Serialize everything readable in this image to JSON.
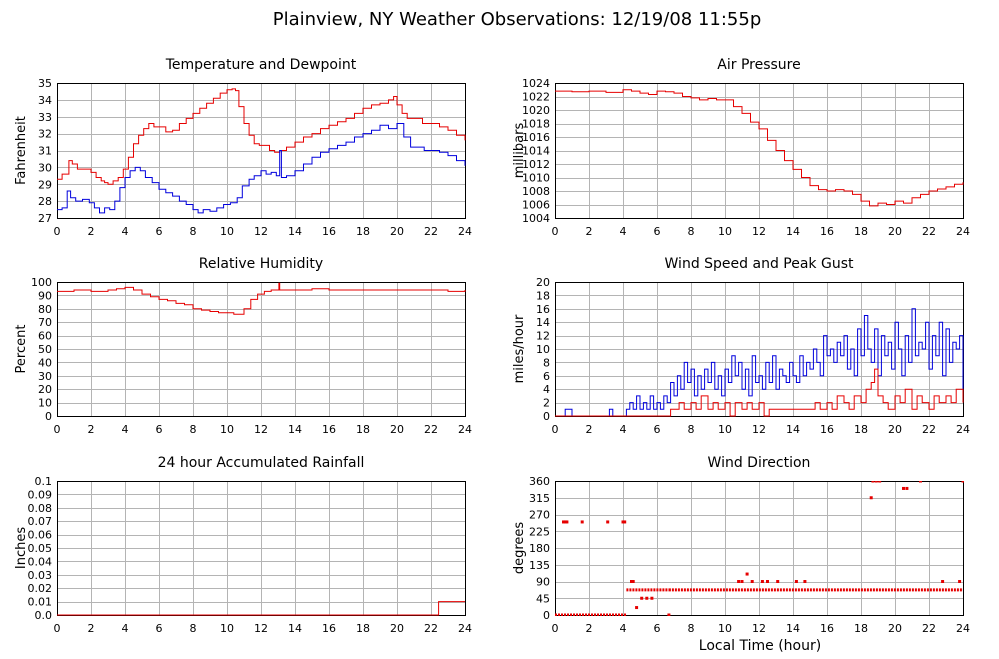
{
  "figure": {
    "title": "Plainview, NY Weather Observations: 12/19/08 11:55p",
    "xlabel": "Local Time (hour)"
  },
  "colors": {
    "red": "#e60000",
    "blue": "#0000dd",
    "grid": "#b4b4b4"
  },
  "chart_data": [
    {
      "type": "line",
      "title": "Temperature and Dewpoint",
      "ylabel": "Fahrenheit",
      "xlim": [
        0,
        24
      ],
      "ylim": [
        27,
        35
      ],
      "xticks": [
        0,
        2,
        4,
        6,
        8,
        10,
        12,
        14,
        16,
        18,
        20,
        22,
        24
      ],
      "yticks": [
        27,
        28,
        29,
        30,
        31,
        32,
        33,
        34,
        35
      ],
      "grid": true,
      "series": [
        {
          "color": "#e60000",
          "x": [
            0,
            0.3,
            0.7,
            0.9,
            1.2,
            1.6,
            2,
            2.3,
            2.6,
            2.8,
            3,
            3.3,
            3.6,
            3.9,
            4.2,
            4.5,
            4.8,
            5.1,
            5.4,
            5.7,
            6,
            6.4,
            6.8,
            7.2,
            7.6,
            8,
            8.4,
            8.8,
            9.2,
            9.6,
            10,
            10.3,
            10.5,
            10.7,
            11,
            11.3,
            11.6,
            11.9,
            12.2,
            12.5,
            12.8,
            13.1,
            13.5,
            14,
            14.5,
            15,
            15.5,
            16,
            16.5,
            17,
            17.5,
            18,
            18.5,
            19,
            19.5,
            19.8,
            20,
            20.3,
            20.6,
            21,
            21.5,
            22,
            22.5,
            23,
            23.5,
            24
          ],
          "y": [
            29.3,
            29.6,
            30.4,
            30.2,
            29.9,
            29.9,
            29.7,
            29.4,
            29.2,
            29.1,
            29.0,
            29.2,
            29.4,
            29.9,
            30.6,
            31.4,
            31.9,
            32.3,
            32.6,
            32.4,
            32.4,
            32.1,
            32.2,
            32.6,
            32.9,
            33.2,
            33.5,
            33.8,
            34.1,
            34.4,
            34.6,
            34.65,
            34.55,
            33.6,
            32.6,
            31.9,
            31.4,
            31.3,
            31.3,
            31.0,
            30.9,
            31.0,
            31.2,
            31.5,
            31.8,
            32.0,
            32.3,
            32.5,
            32.7,
            32.9,
            33.2,
            33.5,
            33.7,
            33.8,
            34.0,
            34.2,
            33.7,
            33.2,
            32.9,
            32.9,
            32.6,
            32.6,
            32.4,
            32.2,
            31.9,
            31.6
          ]
        },
        {
          "color": "#0000dd",
          "x": [
            0,
            0.3,
            0.6,
            0.8,
            1.1,
            1.5,
            1.9,
            2.2,
            2.5,
            2.8,
            3.1,
            3.4,
            3.7,
            4,
            4.3,
            4.6,
            4.9,
            5.2,
            5.6,
            6,
            6.4,
            6.8,
            7.2,
            7.6,
            8,
            8.3,
            8.6,
            9,
            9.4,
            9.8,
            10.2,
            10.6,
            10.9,
            11.3,
            11.6,
            12,
            12.3,
            12.6,
            12.9,
            13.1,
            13.2,
            13.5,
            14,
            14.5,
            15,
            15.5,
            16,
            16.5,
            17,
            17.5,
            18,
            18.5,
            19,
            19.5,
            20,
            20.4,
            20.8,
            21.2,
            21.6,
            22,
            22.5,
            23,
            23.5,
            24
          ],
          "y": [
            27.5,
            27.6,
            28.6,
            28.2,
            28.0,
            28.1,
            27.9,
            27.6,
            27.3,
            27.6,
            27.5,
            28.0,
            28.8,
            29.4,
            29.8,
            30.0,
            29.8,
            29.4,
            29.1,
            28.7,
            28.5,
            28.3,
            28.0,
            27.8,
            27.5,
            27.3,
            27.5,
            27.4,
            27.6,
            27.8,
            27.9,
            28.2,
            28.9,
            29.3,
            29.5,
            29.8,
            29.6,
            29.7,
            29.5,
            31.0,
            29.4,
            29.5,
            29.8,
            30.2,
            30.6,
            30.9,
            31.1,
            31.3,
            31.5,
            31.8,
            32.0,
            32.2,
            32.5,
            32.3,
            32.6,
            31.8,
            31.2,
            31.2,
            31.0,
            31.0,
            30.9,
            30.7,
            30.4,
            30.1
          ]
        }
      ]
    },
    {
      "type": "line",
      "title": "Air Pressure",
      "ylabel": "millibars",
      "xlim": [
        0,
        24
      ],
      "ylim": [
        1004,
        1024
      ],
      "xticks": [
        0,
        2,
        4,
        6,
        8,
        10,
        12,
        14,
        16,
        18,
        20,
        22,
        24
      ],
      "yticks": [
        1004,
        1006,
        1008,
        1010,
        1012,
        1014,
        1016,
        1018,
        1020,
        1022,
        1024
      ],
      "grid": true,
      "series": [
        {
          "color": "#e60000",
          "x": [
            0,
            1,
            2,
            3,
            4,
            4.5,
            5,
            5.5,
            6,
            6.5,
            7,
            7.5,
            8,
            8.5,
            9,
            9.5,
            10,
            10.5,
            11,
            11.5,
            12,
            12.5,
            13,
            13.5,
            14,
            14.5,
            15,
            15.5,
            16,
            16.5,
            17,
            17.5,
            18,
            18.5,
            19,
            19.5,
            20,
            20.5,
            21,
            21.5,
            22,
            22.5,
            23,
            23.5,
            24
          ],
          "y": [
            1022.8,
            1022.7,
            1022.8,
            1022.6,
            1023.0,
            1022.8,
            1022.5,
            1022.3,
            1022.8,
            1022.7,
            1022.5,
            1022.0,
            1021.8,
            1021.5,
            1021.7,
            1021.5,
            1021.5,
            1020.5,
            1019.5,
            1018.2,
            1017.2,
            1015.5,
            1014.0,
            1012.5,
            1011.2,
            1010.0,
            1008.8,
            1008.2,
            1008.0,
            1008.2,
            1008.0,
            1007.5,
            1006.5,
            1005.8,
            1006.2,
            1006.0,
            1006.5,
            1006.2,
            1007.0,
            1007.5,
            1008.0,
            1008.3,
            1008.6,
            1009.0,
            1009.3
          ]
        }
      ]
    },
    {
      "type": "line",
      "title": "Relative Humidity",
      "ylabel": "Percent",
      "xlim": [
        0,
        24
      ],
      "ylim": [
        0,
        100
      ],
      "xticks": [
        0,
        2,
        4,
        6,
        8,
        10,
        12,
        14,
        16,
        18,
        20,
        22,
        24
      ],
      "yticks": [
        0,
        10,
        20,
        30,
        40,
        50,
        60,
        70,
        80,
        90,
        100
      ],
      "grid": true,
      "series": [
        {
          "color": "#e60000",
          "x": [
            0,
            0.5,
            1,
            2,
            3,
            3.5,
            4,
            4.5,
            5,
            5.5,
            6,
            6.5,
            7,
            7.5,
            8,
            8.5,
            9,
            9.5,
            10,
            10.4,
            10.7,
            11,
            11.4,
            11.8,
            12.2,
            12.6,
            13,
            13.05,
            13.1,
            13.2,
            13.5,
            14,
            15,
            16,
            17,
            18,
            19,
            20,
            21,
            22,
            23,
            23.5,
            24
          ],
          "y": [
            93,
            93,
            94,
            93,
            94,
            95,
            96,
            94,
            91,
            89,
            87,
            86,
            84,
            83,
            80,
            79,
            78,
            77,
            77,
            76,
            76,
            80,
            87,
            91,
            93,
            94,
            94,
            99,
            94,
            94,
            94,
            94,
            95,
            94,
            94,
            94,
            94,
            94,
            94,
            94,
            93,
            93,
            94
          ]
        }
      ]
    },
    {
      "type": "line",
      "title": "Wind Speed and Peak Gust",
      "ylabel": "miles/hour",
      "xlim": [
        0,
        24
      ],
      "ylim": [
        0,
        20
      ],
      "xticks": [
        0,
        2,
        4,
        6,
        8,
        10,
        12,
        14,
        16,
        18,
        20,
        22,
        24
      ],
      "yticks": [
        0,
        2,
        4,
        6,
        8,
        10,
        12,
        14,
        16,
        18,
        20
      ],
      "grid": true,
      "series": [
        {
          "color": "#0000dd",
          "x": [
            0,
            0.4,
            0.6,
            0.8,
            1,
            2,
            3,
            3.2,
            3.4,
            4,
            4.2,
            4.4,
            4.6,
            4.8,
            5,
            5.2,
            5.4,
            5.6,
            5.8,
            6,
            6.2,
            6.4,
            6.6,
            6.8,
            7,
            7.2,
            7.4,
            7.6,
            7.8,
            8,
            8.2,
            8.4,
            8.6,
            8.8,
            9,
            9.2,
            9.4,
            9.6,
            9.8,
            10,
            10.2,
            10.4,
            10.6,
            10.8,
            11,
            11.2,
            11.4,
            11.6,
            11.8,
            12,
            12.2,
            12.4,
            12.6,
            12.8,
            13,
            13.2,
            13.4,
            13.6,
            13.8,
            14,
            14.2,
            14.4,
            14.6,
            14.8,
            15,
            15.2,
            15.4,
            15.6,
            15.8,
            16,
            16.2,
            16.4,
            16.6,
            16.8,
            17,
            17.2,
            17.4,
            17.6,
            17.8,
            18,
            18.2,
            18.4,
            18.6,
            18.8,
            19,
            19.2,
            19.4,
            19.6,
            19.8,
            20,
            20.2,
            20.4,
            20.6,
            20.8,
            21,
            21.2,
            21.4,
            21.6,
            21.8,
            22,
            22.2,
            22.4,
            22.6,
            22.8,
            23,
            23.2,
            23.4,
            23.6,
            23.8,
            24
          ],
          "y": [
            0,
            0,
            1,
            1,
            0,
            0,
            0,
            1,
            0,
            0,
            1,
            2,
            1,
            3,
            1,
            2,
            1,
            3,
            1,
            2,
            1,
            3,
            2,
            5,
            3,
            6,
            4,
            8,
            5,
            7,
            3,
            6,
            4,
            7,
            5,
            8,
            4,
            6,
            3,
            7,
            5,
            9,
            6,
            8,
            4,
            7,
            3,
            9,
            5,
            6,
            4,
            8,
            5,
            9,
            4,
            7,
            6,
            5,
            8,
            6,
            5,
            9,
            6,
            8,
            7,
            10,
            8,
            6,
            12,
            9,
            10,
            8,
            11,
            9,
            12,
            7,
            10,
            6,
            13,
            9,
            15,
            10,
            8,
            13,
            6,
            12,
            9,
            11,
            7,
            14,
            10,
            6,
            12,
            8,
            16,
            9,
            11,
            10,
            14,
            7,
            12,
            9,
            14,
            6,
            13,
            8,
            11,
            10,
            12,
            4
          ]
        },
        {
          "color": "#e60000",
          "x": [
            0,
            3,
            6,
            6.5,
            6.8,
            7,
            7.3,
            7.6,
            8,
            8.3,
            8.6,
            9,
            9.3,
            9.6,
            10,
            10.3,
            10.6,
            11,
            11.3,
            11.6,
            12,
            12.3,
            12.6,
            13,
            13.5,
            14,
            14.5,
            15,
            15.3,
            15.6,
            16,
            16.3,
            16.6,
            17,
            17.3,
            17.6,
            18,
            18.3,
            18.6,
            18.8,
            19,
            19.3,
            19.6,
            20,
            20.3,
            20.6,
            21,
            21.3,
            21.6,
            22,
            22.3,
            22.6,
            23,
            23.3,
            23.6,
            24
          ],
          "y": [
            0,
            0,
            0,
            0,
            1,
            1,
            2,
            1,
            2,
            1,
            3,
            1,
            2,
            1,
            2,
            0,
            2,
            1,
            2,
            1,
            2,
            0,
            1,
            1,
            1,
            1,
            1,
            1,
            2,
            1,
            2,
            1,
            3,
            2,
            1,
            3,
            2,
            4,
            5,
            7,
            3,
            2,
            1,
            3,
            2,
            4,
            1,
            3,
            2,
            1,
            3,
            2,
            3,
            2,
            4,
            2
          ]
        }
      ]
    },
    {
      "type": "line",
      "title": "24 hour Accumulated Rainfall",
      "ylabel": "Inches",
      "xlim": [
        0,
        24
      ],
      "ylim": [
        0,
        0.1
      ],
      "xticks": [
        0,
        2,
        4,
        6,
        8,
        10,
        12,
        14,
        16,
        18,
        20,
        22,
        24
      ],
      "yticks": [
        0.0,
        0.01,
        0.02,
        0.03,
        0.04,
        0.05,
        0.06,
        0.07,
        0.08,
        0.09,
        0.1
      ],
      "yticklabels": [
        "0.0",
        "0.01",
        "0.02",
        "0.03",
        "0.04",
        "0.05",
        "0.06",
        "0.07",
        "0.08",
        "0.09",
        "0.1"
      ],
      "grid": true,
      "series": [
        {
          "color": "#e60000",
          "x": [
            0,
            22.3,
            22.45,
            24
          ],
          "y": [
            0,
            0,
            0.01,
            0.01
          ]
        }
      ]
    },
    {
      "type": "scatter",
      "title": "Wind Direction",
      "ylabel": "degrees",
      "xlim": [
        0,
        24
      ],
      "ylim": [
        0,
        360
      ],
      "xticks": [
        0,
        2,
        4,
        6,
        8,
        10,
        12,
        14,
        16,
        18,
        20,
        22,
        24
      ],
      "yticks": [
        0,
        45,
        90,
        135,
        180,
        225,
        270,
        315,
        360
      ],
      "grid": true,
      "series": [
        {
          "color": "#e60000",
          "x": [
            0.5,
            0.6,
            0.7,
            1.6,
            3.1,
            4.0,
            4.1,
            4.5,
            4.6,
            4.8,
            5.1,
            5.4,
            5.7,
            6.7,
            10.8,
            11.0,
            11.3,
            11.6,
            12.2,
            12.5,
            13.1,
            14.2,
            14.7,
            18.6,
            18.7,
            18.9,
            19.1,
            20.5,
            20.7,
            21.5,
            22.8,
            23.8,
            24.0
          ],
          "y": [
            250,
            250,
            250,
            250,
            250,
            250,
            250,
            90,
            90,
            20,
            45,
            45,
            45,
            0,
            90,
            90,
            110,
            90,
            90,
            90,
            90,
            90,
            90,
            315,
            360,
            360,
            360,
            340,
            340,
            360,
            90,
            90,
            360
          ]
        }
      ],
      "bands": [
        {
          "x_start": 0,
          "x_end": 4.2,
          "y": 0
        },
        {
          "x_start": 4.2,
          "x_end": 6.7,
          "y": 67.5
        },
        {
          "x_start": 6.7,
          "x_end": 24,
          "y": 67.5
        }
      ]
    }
  ]
}
